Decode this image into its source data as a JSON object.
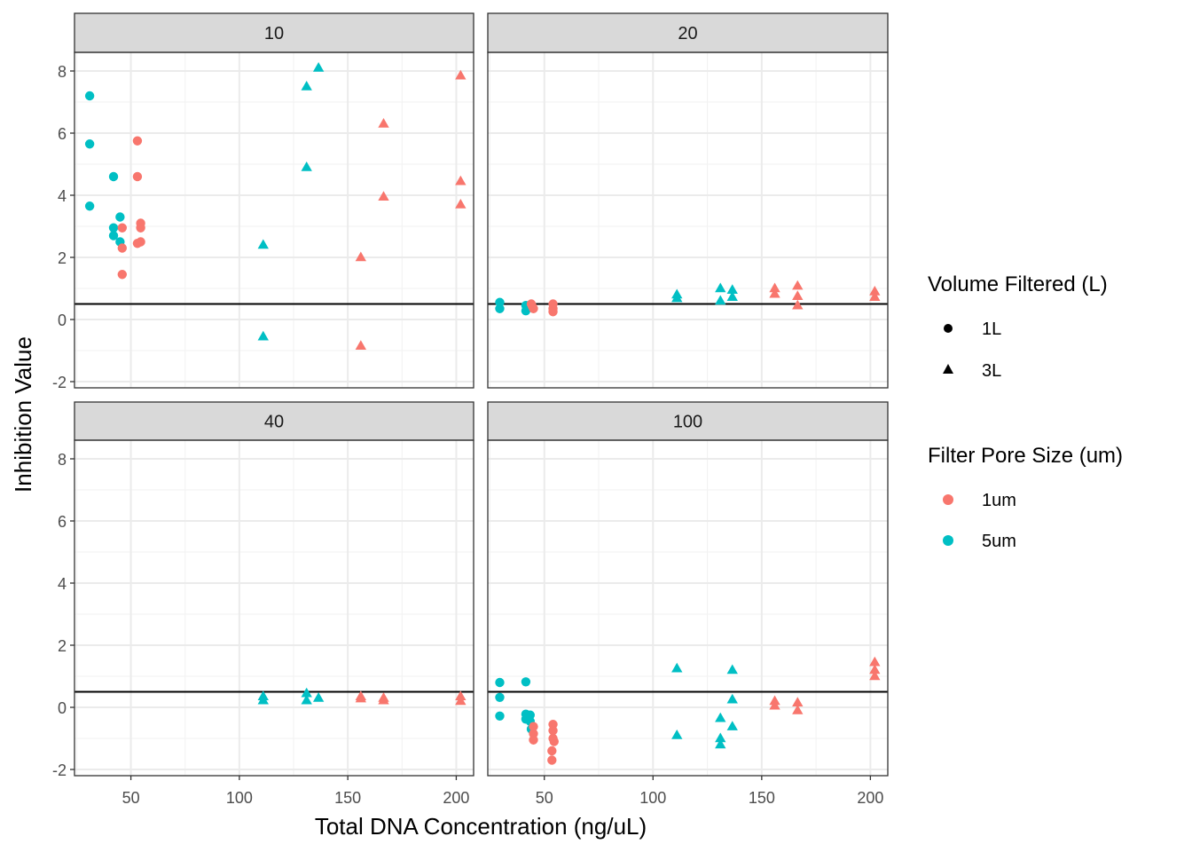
{
  "chart_data": {
    "type": "scatter",
    "xlabel": "Total DNA Concentration (ng/uL)",
    "ylabel": "Inhibition Value",
    "xlim": [
      24,
      208
    ],
    "ylim": [
      -2.2,
      8.6
    ],
    "x_ticks": [
      50,
      100,
      150,
      200
    ],
    "y_ticks": [
      -2,
      0,
      2,
      4,
      6,
      8
    ],
    "threshold_line": 0.5,
    "grid": true,
    "legend_position": "right",
    "facet_labels": [
      "10",
      "20",
      "40",
      "100"
    ],
    "legend": {
      "shape": {
        "title": "Volume Filtered (L)",
        "items": [
          {
            "label": "1L",
            "shape": "circle"
          },
          {
            "label": "3L",
            "shape": "triangle"
          }
        ]
      },
      "color": {
        "title": "Filter Pore Size (um)",
        "items": [
          {
            "label": "1um",
            "color": "#F8766D"
          },
          {
            "label": "5um",
            "color": "#00BFC4"
          }
        ]
      }
    },
    "panels": [
      {
        "facet": "10",
        "points": [
          {
            "x": 31,
            "y": 7.2,
            "vol": "1L",
            "pore": "5um"
          },
          {
            "x": 31,
            "y": 5.65,
            "vol": "1L",
            "pore": "5um"
          },
          {
            "x": 31,
            "y": 3.65,
            "vol": "1L",
            "pore": "5um"
          },
          {
            "x": 42,
            "y": 4.6,
            "vol": "1L",
            "pore": "5um"
          },
          {
            "x": 42,
            "y": 2.95,
            "vol": "1L",
            "pore": "5um"
          },
          {
            "x": 42,
            "y": 2.7,
            "vol": "1L",
            "pore": "5um"
          },
          {
            "x": 45,
            "y": 3.3,
            "vol": "1L",
            "pore": "5um"
          },
          {
            "x": 45,
            "y": 2.5,
            "vol": "1L",
            "pore": "5um"
          },
          {
            "x": 46,
            "y": 2.95,
            "vol": "1L",
            "pore": "1um"
          },
          {
            "x": 46,
            "y": 2.3,
            "vol": "1L",
            "pore": "1um"
          },
          {
            "x": 46,
            "y": 1.45,
            "vol": "1L",
            "pore": "1um"
          },
          {
            "x": 53,
            "y": 5.75,
            "vol": "1L",
            "pore": "1um"
          },
          {
            "x": 53,
            "y": 4.6,
            "vol": "1L",
            "pore": "1um"
          },
          {
            "x": 53,
            "y": 2.45,
            "vol": "1L",
            "pore": "1um"
          },
          {
            "x": 54.5,
            "y": 3.1,
            "vol": "1L",
            "pore": "1um"
          },
          {
            "x": 54.5,
            "y": 2.95,
            "vol": "1L",
            "pore": "1um"
          },
          {
            "x": 54.5,
            "y": 2.5,
            "vol": "1L",
            "pore": "1um"
          },
          {
            "x": 111,
            "y": 2.4,
            "vol": "3L",
            "pore": "5um"
          },
          {
            "x": 111,
            "y": -0.55,
            "vol": "3L",
            "pore": "5um"
          },
          {
            "x": 131,
            "y": 7.5,
            "vol": "3L",
            "pore": "5um"
          },
          {
            "x": 131,
            "y": 4.9,
            "vol": "3L",
            "pore": "5um"
          },
          {
            "x": 136.5,
            "y": 8.1,
            "vol": "3L",
            "pore": "5um"
          },
          {
            "x": 156,
            "y": 2.0,
            "vol": "3L",
            "pore": "1um"
          },
          {
            "x": 156,
            "y": -0.85,
            "vol": "3L",
            "pore": "1um"
          },
          {
            "x": 166.5,
            "y": 6.3,
            "vol": "3L",
            "pore": "1um"
          },
          {
            "x": 166.5,
            "y": 3.95,
            "vol": "3L",
            "pore": "1um"
          },
          {
            "x": 202,
            "y": 7.85,
            "vol": "3L",
            "pore": "1um"
          },
          {
            "x": 202,
            "y": 4.45,
            "vol": "3L",
            "pore": "1um"
          },
          {
            "x": 202,
            "y": 3.7,
            "vol": "3L",
            "pore": "1um"
          }
        ]
      },
      {
        "facet": "20",
        "points": [
          {
            "x": 29.5,
            "y": 0.55,
            "vol": "1L",
            "pore": "5um"
          },
          {
            "x": 29.5,
            "y": 0.35,
            "vol": "1L",
            "pore": "5um"
          },
          {
            "x": 41.5,
            "y": 0.45,
            "vol": "1L",
            "pore": "5um"
          },
          {
            "x": 41.5,
            "y": 0.28,
            "vol": "1L",
            "pore": "5um"
          },
          {
            "x": 43,
            "y": 0.4,
            "vol": "1L",
            "pore": "5um"
          },
          {
            "x": 44,
            "y": 0.5,
            "vol": "1L",
            "pore": "1um"
          },
          {
            "x": 44.5,
            "y": 0.42,
            "vol": "1L",
            "pore": "1um"
          },
          {
            "x": 45,
            "y": 0.35,
            "vol": "1L",
            "pore": "1um"
          },
          {
            "x": 54,
            "y": 0.5,
            "vol": "1L",
            "pore": "1um"
          },
          {
            "x": 54,
            "y": 0.35,
            "vol": "1L",
            "pore": "1um"
          },
          {
            "x": 54,
            "y": 0.25,
            "vol": "1L",
            "pore": "1um"
          },
          {
            "x": 111,
            "y": 0.8,
            "vol": "3L",
            "pore": "5um"
          },
          {
            "x": 111,
            "y": 0.68,
            "vol": "3L",
            "pore": "5um"
          },
          {
            "x": 131,
            "y": 1.0,
            "vol": "3L",
            "pore": "5um"
          },
          {
            "x": 131,
            "y": 0.6,
            "vol": "3L",
            "pore": "5um"
          },
          {
            "x": 136.5,
            "y": 0.95,
            "vol": "3L",
            "pore": "5um"
          },
          {
            "x": 136.5,
            "y": 0.72,
            "vol": "3L",
            "pore": "5um"
          },
          {
            "x": 156,
            "y": 1.0,
            "vol": "3L",
            "pore": "1um"
          },
          {
            "x": 156,
            "y": 0.82,
            "vol": "3L",
            "pore": "1um"
          },
          {
            "x": 166.5,
            "y": 1.08,
            "vol": "3L",
            "pore": "1um"
          },
          {
            "x": 166.5,
            "y": 0.75,
            "vol": "3L",
            "pore": "1um"
          },
          {
            "x": 166.5,
            "y": 0.45,
            "vol": "3L",
            "pore": "1um"
          },
          {
            "x": 202,
            "y": 0.9,
            "vol": "3L",
            "pore": "1um"
          },
          {
            "x": 202,
            "y": 0.72,
            "vol": "3L",
            "pore": "1um"
          }
        ]
      },
      {
        "facet": "40",
        "points": [
          {
            "x": 111,
            "y": 0.35,
            "vol": "3L",
            "pore": "5um"
          },
          {
            "x": 111,
            "y": 0.22,
            "vol": "3L",
            "pore": "5um"
          },
          {
            "x": 131,
            "y": 0.45,
            "vol": "3L",
            "pore": "5um"
          },
          {
            "x": 131,
            "y": 0.22,
            "vol": "3L",
            "pore": "5um"
          },
          {
            "x": 136.5,
            "y": 0.3,
            "vol": "3L",
            "pore": "5um"
          },
          {
            "x": 156,
            "y": 0.35,
            "vol": "3L",
            "pore": "1um"
          },
          {
            "x": 156,
            "y": 0.28,
            "vol": "3L",
            "pore": "1um"
          },
          {
            "x": 166.5,
            "y": 0.3,
            "vol": "3L",
            "pore": "1um"
          },
          {
            "x": 166.5,
            "y": 0.22,
            "vol": "3L",
            "pore": "1um"
          },
          {
            "x": 202,
            "y": 0.35,
            "vol": "3L",
            "pore": "1um"
          },
          {
            "x": 202,
            "y": 0.2,
            "vol": "3L",
            "pore": "1um"
          }
        ]
      },
      {
        "facet": "100",
        "points": [
          {
            "x": 29.5,
            "y": 0.8,
            "vol": "1L",
            "pore": "5um"
          },
          {
            "x": 29.5,
            "y": 0.32,
            "vol": "1L",
            "pore": "5um"
          },
          {
            "x": 29.5,
            "y": -0.28,
            "vol": "1L",
            "pore": "5um"
          },
          {
            "x": 41.5,
            "y": 0.82,
            "vol": "1L",
            "pore": "5um"
          },
          {
            "x": 41.5,
            "y": -0.22,
            "vol": "1L",
            "pore": "5um"
          },
          {
            "x": 41.5,
            "y": -0.38,
            "vol": "1L",
            "pore": "5um"
          },
          {
            "x": 43.5,
            "y": -0.25,
            "vol": "1L",
            "pore": "5um"
          },
          {
            "x": 43.5,
            "y": -0.45,
            "vol": "1L",
            "pore": "5um"
          },
          {
            "x": 44,
            "y": -0.7,
            "vol": "1L",
            "pore": "5um"
          },
          {
            "x": 45,
            "y": -0.62,
            "vol": "1L",
            "pore": "1um"
          },
          {
            "x": 45,
            "y": -0.85,
            "vol": "1L",
            "pore": "1um"
          },
          {
            "x": 45,
            "y": -1.05,
            "vol": "1L",
            "pore": "1um"
          },
          {
            "x": 54,
            "y": -0.55,
            "vol": "1L",
            "pore": "1um"
          },
          {
            "x": 54,
            "y": -0.75,
            "vol": "1L",
            "pore": "1um"
          },
          {
            "x": 54,
            "y": -1.0,
            "vol": "1L",
            "pore": "1um"
          },
          {
            "x": 54.5,
            "y": -1.1,
            "vol": "1L",
            "pore": "1um"
          },
          {
            "x": 53.5,
            "y": -1.4,
            "vol": "1L",
            "pore": "1um"
          },
          {
            "x": 53.5,
            "y": -1.7,
            "vol": "1L",
            "pore": "1um"
          },
          {
            "x": 111,
            "y": 1.25,
            "vol": "3L",
            "pore": "5um"
          },
          {
            "x": 111,
            "y": -0.9,
            "vol": "3L",
            "pore": "5um"
          },
          {
            "x": 131,
            "y": -0.35,
            "vol": "3L",
            "pore": "5um"
          },
          {
            "x": 131,
            "y": -1.0,
            "vol": "3L",
            "pore": "5um"
          },
          {
            "x": 131,
            "y": -1.2,
            "vol": "3L",
            "pore": "5um"
          },
          {
            "x": 136.5,
            "y": 1.2,
            "vol": "3L",
            "pore": "5um"
          },
          {
            "x": 136.5,
            "y": 0.25,
            "vol": "3L",
            "pore": "5um"
          },
          {
            "x": 136.5,
            "y": -0.62,
            "vol": "3L",
            "pore": "5um"
          },
          {
            "x": 156,
            "y": 0.2,
            "vol": "3L",
            "pore": "1um"
          },
          {
            "x": 156,
            "y": 0.05,
            "vol": "3L",
            "pore": "1um"
          },
          {
            "x": 166.5,
            "y": 0.15,
            "vol": "3L",
            "pore": "1um"
          },
          {
            "x": 166.5,
            "y": -0.1,
            "vol": "3L",
            "pore": "1um"
          },
          {
            "x": 202,
            "y": 1.45,
            "vol": "3L",
            "pore": "1um"
          },
          {
            "x": 202,
            "y": 1.2,
            "vol": "3L",
            "pore": "1um"
          },
          {
            "x": 202,
            "y": 1.0,
            "vol": "3L",
            "pore": "1um"
          }
        ]
      }
    ]
  }
}
